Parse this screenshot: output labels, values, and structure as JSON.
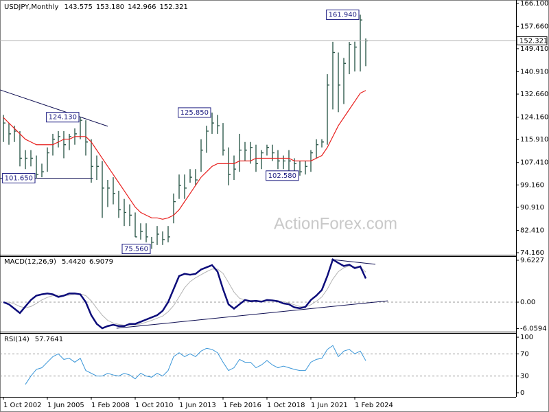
{
  "chart_data": [
    {
      "type": "ohlc",
      "title": "USDJPY,Monthly",
      "quote": [
        {
          "value": 143.575,
          "label": "143.575"
        },
        {
          "value": 153.18,
          "label": "153.180"
        },
        {
          "value": 142.966,
          "label": "142.966"
        },
        {
          "value": 152.321,
          "label": "152.321"
        }
      ],
      "categories": [
        "1 Oct 2002",
        null,
        null,
        null,
        null,
        null,
        null,
        null,
        "1 Jun 2005",
        null,
        null,
        null,
        null,
        null,
        null,
        null,
        "1 Feb 2008",
        null,
        null,
        null,
        null,
        null,
        null,
        null,
        "1 Oct 2010",
        null,
        null,
        null,
        null,
        null,
        null,
        null,
        "1 Jun 2013",
        null,
        null,
        null,
        null,
        null,
        null,
        null,
        "1 Feb 2016",
        null,
        null,
        null,
        null,
        null,
        null,
        null,
        "1 Oct 2018",
        null,
        null,
        null,
        null,
        null,
        null,
        null,
        "1 Jun 2021",
        null,
        null,
        null,
        null,
        null,
        null,
        null,
        "1 Feb 2024",
        null,
        null
      ],
      "high": [
        125,
        122,
        121,
        119,
        112,
        112,
        110,
        107,
        113,
        118,
        119,
        119,
        118,
        120,
        124.13,
        123,
        116,
        110,
        108,
        101,
        102,
        97,
        94,
        92,
        89,
        85,
        85,
        80,
        84,
        82,
        84,
        96,
        103,
        103,
        105,
        105,
        116,
        121,
        125.85,
        125,
        122,
        113,
        110,
        118,
        115,
        115,
        114,
        112,
        114,
        114,
        112,
        110,
        112,
        109,
        108,
        108,
        112,
        116,
        116,
        140,
        151.95,
        148,
        146,
        151.9,
        152,
        161.94,
        153.18
      ],
      "low": [
        115,
        114,
        115,
        106,
        105,
        106,
        101.65,
        102,
        104,
        110,
        113,
        109,
        112,
        114,
        116,
        110,
        100,
        101,
        87,
        91,
        92,
        87,
        84,
        84,
        80,
        79,
        78,
        75.56,
        77,
        77,
        78,
        85,
        94,
        94,
        100,
        99,
        104,
        111,
        118,
        118,
        110,
        99,
        101,
        104,
        108,
        107,
        104,
        105,
        110,
        108,
        105,
        105,
        102,
        104,
        102.58,
        103,
        104,
        109,
        113,
        114,
        127,
        126,
        129,
        140,
        141,
        141,
        142.966
      ],
      "close": [
        122,
        118,
        119,
        109,
        109,
        109,
        103,
        104,
        111,
        116,
        117,
        114,
        117,
        118,
        123,
        115,
        106,
        106,
        98,
        98,
        96,
        90,
        89,
        88,
        80,
        82,
        80,
        78,
        81,
        79,
        80,
        93,
        99,
        98,
        102,
        101,
        112,
        119,
        122,
        121,
        112,
        103,
        105,
        112,
        112,
        113,
        107,
        111,
        113,
        111,
        108,
        108,
        108,
        107,
        104,
        106,
        111,
        114,
        115,
        136,
        148,
        136,
        144,
        151,
        150,
        160,
        152.321
      ],
      "color": "#2f5a4c",
      "overlay": {
        "color": "#e8201e",
        "values": [
          124,
          122,
          120,
          118,
          116,
          115,
          114,
          114,
          114,
          114,
          115,
          116,
          116,
          117,
          117,
          117,
          115,
          112,
          109,
          106,
          103,
          100,
          97,
          94,
          91,
          89,
          88,
          87,
          87,
          86.5,
          87,
          88,
          90,
          93,
          96,
          99,
          102,
          104,
          106,
          107,
          107,
          107,
          107,
          108,
          108,
          108,
          109,
          109,
          109,
          109,
          109,
          109,
          109,
          108,
          108,
          108,
          108,
          109,
          110,
          113,
          117,
          121,
          124,
          127,
          130,
          133,
          134
        ]
      },
      "ylim": [
        73.15,
        167.37
      ],
      "yticks": [
        {
          "value": 166.1,
          "label": "166.100"
        },
        {
          "value": 157.66,
          "label": "157.660"
        },
        {
          "value": 149.41,
          "label": "149.410"
        },
        {
          "value": 140.91,
          "label": "140.910"
        },
        {
          "value": 132.66,
          "label": "132.660"
        },
        {
          "value": 124.16,
          "label": "124.160"
        },
        {
          "value": 115.91,
          "label": "115.910"
        },
        {
          "value": 107.41,
          "label": "107.410"
        },
        {
          "value": 99.16,
          "label": "99.160"
        },
        {
          "value": 90.91,
          "label": "90.910"
        },
        {
          "value": 82.41,
          "label": "82.410"
        },
        {
          "value": 74.16,
          "label": "74.160"
        }
      ],
      "annotations": [
        {
          "value": 161.94,
          "label": "161.940"
        },
        {
          "value": 124.13,
          "label": "124.130"
        },
        {
          "value": 125.85,
          "label": "125.850"
        },
        {
          "value": 101.65,
          "label": "101.650"
        },
        {
          "value": 102.58,
          "label": "102.580"
        },
        {
          "value": 75.56,
          "label": "75.560"
        }
      ],
      "trendlines": [
        {
          "x": [
            -0.6,
            19
          ],
          "y": [
            134.2,
            120.8
          ]
        },
        {
          "x": [
            -0.6,
            16.3
          ],
          "y": [
            101.65,
            101.65
          ]
        }
      ],
      "watermark": "ActionForex.com"
    },
    {
      "type": "macd",
      "title": "MACD(12,26,9)",
      "readout": [
        {
          "value": 5.442,
          "label": "5.4420"
        },
        {
          "value": 6.9079,
          "label": "6.9079"
        }
      ],
      "lines": [
        {
          "color": "#0c0c7a",
          "width": 2.5,
          "values": [
            0,
            -0.5,
            -1.5,
            -2.5,
            -1,
            0.5,
            1.5,
            1.8,
            2,
            1.8,
            1.2,
            1.5,
            2,
            2,
            1.8,
            0,
            -3,
            -5,
            -6,
            -5.5,
            -5.2,
            -5.5,
            -5.5,
            -5,
            -5,
            -4.5,
            -4,
            -3.5,
            -3,
            -2,
            0,
            3,
            6,
            6.5,
            6.3,
            6.5,
            7.5,
            8,
            8.5,
            7,
            3,
            -0.5,
            -1.5,
            -0.5,
            0.5,
            0.2,
            0.3,
            0.1,
            0.5,
            0.4,
            0.2,
            -0.3,
            -0.5,
            -1.2,
            -1.4,
            -1.1,
            0.5,
            1.5,
            2.8,
            6,
            9.8,
            9,
            8.3,
            8.6,
            7.8,
            8.2,
            5.442
          ]
        },
        {
          "color": "#b4b4b4",
          "width": 1,
          "values": [
            0,
            0,
            -0.4,
            -1,
            -1.3,
            -1,
            -0.3,
            0.5,
            1.1,
            1.5,
            1.6,
            1.5,
            1.6,
            1.8,
            1.9,
            1.5,
            0.3,
            -1.4,
            -3,
            -4.2,
            -4.8,
            -5.1,
            -5.3,
            -5.3,
            -5.2,
            -5,
            -4.6,
            -4.2,
            -3.7,
            -3.2,
            -2.2,
            -0.8,
            1.2,
            3.3,
            4.7,
            5.6,
            6.3,
            7,
            7.6,
            7.6,
            6.6,
            4.5,
            2.3,
            0.9,
            0.5,
            0.4,
            0.3,
            0.3,
            0.3,
            0.4,
            0.3,
            0.1,
            -0.2,
            -0.6,
            -1,
            -1.1,
            -0.6,
            0.2,
            1.2,
            3,
            5.3,
            7,
            7.9,
            8.3,
            8.1,
            8.1,
            6.9079
          ]
        }
      ],
      "ylim": [
        -6.78,
        10.57
      ],
      "yticks": [
        9.6227,
        {
          "value": 0,
          "label": "0.00"
        },
        -6.0594
      ],
      "levels": [
        0
      ],
      "trendlines": [
        {
          "x": [
            20.6,
            70
          ],
          "y": [
            -6,
            0.3
          ]
        },
        {
          "x": [
            59.75,
            67.75
          ],
          "y": [
            9.8,
            8.7
          ]
        }
      ]
    },
    {
      "type": "rsi",
      "title": "RSI(14)",
      "readout": [
        {
          "value": 57.7641,
          "label": "57.7641"
        }
      ],
      "color": "#3a96d8",
      "values": [
        null,
        null,
        null,
        null,
        15,
        30,
        42,
        45,
        55,
        65,
        70,
        60,
        62,
        55,
        62,
        40,
        35,
        30,
        30,
        35,
        32,
        30,
        35,
        32,
        25,
        35,
        30,
        28,
        35,
        30,
        40,
        65,
        72,
        65,
        70,
        65,
        75,
        80,
        78,
        72,
        55,
        40,
        45,
        60,
        55,
        55,
        45,
        50,
        58,
        50,
        45,
        48,
        45,
        42,
        40,
        40,
        55,
        60,
        62,
        78,
        85,
        65,
        75,
        78,
        70,
        75,
        57.7641
      ],
      "ylim": [
        -7.5,
        107.5
      ],
      "yticks": [
        100,
        70,
        30,
        0
      ],
      "levels": [
        70,
        30
      ]
    }
  ]
}
